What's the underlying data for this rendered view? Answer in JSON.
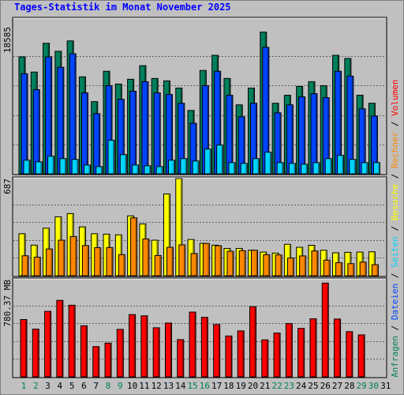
{
  "title": "Tages-Statistik im Monat November 2025",
  "colors": {
    "background": "#c0c0c0",
    "title": "#0000ff",
    "day_label": "#000000",
    "weekend_label": "#00804f",
    "anfragen": "#00805c",
    "dateien": "#0044ff",
    "seiten": "#00d5ff",
    "besuche": "#ffff00",
    "rechner": "#ff8800",
    "volumen": "#ff0000"
  },
  "chart_data": [
    {
      "type": "bar",
      "panel": "top",
      "ymax_label": "18585",
      "ylim": [
        0,
        18585
      ],
      "categories": [
        "1",
        "2",
        "3",
        "4",
        "5",
        "6",
        "7",
        "8",
        "9",
        "10",
        "11",
        "12",
        "13",
        "14",
        "15",
        "16",
        "17",
        "18",
        "19",
        "20",
        "21",
        "22",
        "23",
        "24",
        "25",
        "26",
        "27",
        "28",
        "29",
        "30",
        "31"
      ],
      "weekend_days": [
        "1",
        "2",
        "8",
        "9",
        "15",
        "16",
        "22",
        "23",
        "29",
        "30"
      ],
      "series": [
        {
          "name": "Anfragen",
          "values": [
            14630,
            12730,
            16330,
            15330,
            16630,
            12130,
            9030,
            12830,
            11230,
            11830,
            13530,
            11930,
            11630,
            10730,
            7930,
            12930,
            14830,
            11930,
            8630,
            10730,
            17730,
            8830,
            9830,
            10930,
            11530,
            11030,
            14830,
            14430,
            9830,
            8830,
            null
          ]
        },
        {
          "name": "Dateien",
          "values": [
            12530,
            10530,
            14630,
            13330,
            15030,
            10130,
            7530,
            11030,
            9330,
            10330,
            11530,
            10130,
            9930,
            8830,
            6330,
            11030,
            12830,
            9830,
            7130,
            8830,
            15830,
            7630,
            8630,
            9630,
            10030,
            9530,
            12830,
            12230,
            8130,
            7230,
            null
          ]
        },
        {
          "name": "Seiten",
          "values": [
            1700,
            1500,
            2200,
            1900,
            1800,
            1100,
            900,
            4200,
            2400,
            1100,
            1000,
            900,
            1700,
            1900,
            1600,
            3100,
            3600,
            1400,
            1300,
            1900,
            2700,
            1400,
            1300,
            1200,
            1400,
            1900,
            2300,
            1800,
            1400,
            1400,
            null
          ]
        }
      ]
    },
    {
      "type": "bar",
      "panel": "middle",
      "ymax_label": "687",
      "ylim": [
        0,
        687
      ],
      "categories": [
        "1",
        "2",
        "3",
        "4",
        "5",
        "6",
        "7",
        "8",
        "9",
        "10",
        "11",
        "12",
        "13",
        "14",
        "15",
        "16",
        "17",
        "18",
        "19",
        "20",
        "21",
        "22",
        "23",
        "24",
        "25",
        "26",
        "27",
        "28",
        "29",
        "30",
        "31"
      ],
      "series": [
        {
          "name": "Besuche",
          "values": [
            297,
            216,
            336,
            416,
            439,
            345,
            297,
            294,
            289,
            423,
            366,
            251,
            578,
            687,
            256,
            229,
            216,
            193,
            193,
            180,
            167,
            160,
            222,
            201,
            215,
            180,
            162,
            165,
            167,
            169,
            null
          ]
        },
        {
          "name": "Rechner",
          "values": [
            141,
            131,
            189,
            251,
            277,
            213,
            198,
            199,
            149,
            409,
            260,
            143,
            201,
            218,
            157,
            228,
            212,
            173,
            177,
            180,
            148,
            147,
            125,
            140,
            175,
            110,
            92,
            85,
            96,
            78,
            null
          ]
        }
      ]
    },
    {
      "type": "bar",
      "panel": "bottom",
      "ymax_label": "780.37 MB",
      "ylim": [
        0,
        780.37
      ],
      "categories": [
        "1",
        "2",
        "3",
        "4",
        "5",
        "6",
        "7",
        "8",
        "9",
        "10",
        "11",
        "12",
        "13",
        "14",
        "15",
        "16",
        "17",
        "18",
        "19",
        "20",
        "21",
        "22",
        "23",
        "24",
        "25",
        "26",
        "27",
        "28",
        "29",
        "30",
        "31"
      ],
      "series": [
        {
          "name": "Volumen",
          "values": [
            460,
            383,
            526,
            614,
            575,
            410,
            243,
            271,
            381,
            500,
            490,
            394,
            432,
            299,
            520,
            478,
            420,
            328,
            369,
            563,
            297,
            352,
            428,
            389,
            466,
            753,
            464,
            363,
            337,
            null,
            null
          ]
        }
      ]
    }
  ],
  "legend_right": {
    "top": [
      {
        "text": "Anfragen",
        "color": "#00805c"
      },
      {
        "text": " / ",
        "color": "#000000"
      },
      {
        "text": "Dateien",
        "color": "#0044ff"
      },
      {
        "text": " / ",
        "color": "#000000"
      },
      {
        "text": "Seiten",
        "color": "#00d5ff"
      },
      {
        "text": " / ",
        "color": "#000000"
      },
      {
        "text": "Besuche",
        "color": "#ffff00"
      },
      {
        "text": " / ",
        "color": "#000000"
      },
      {
        "text": "Rechner",
        "color": "#ff8800"
      },
      {
        "text": " / ",
        "color": "#000000"
      },
      {
        "text": "Volumen",
        "color": "#ff0000"
      }
    ]
  }
}
